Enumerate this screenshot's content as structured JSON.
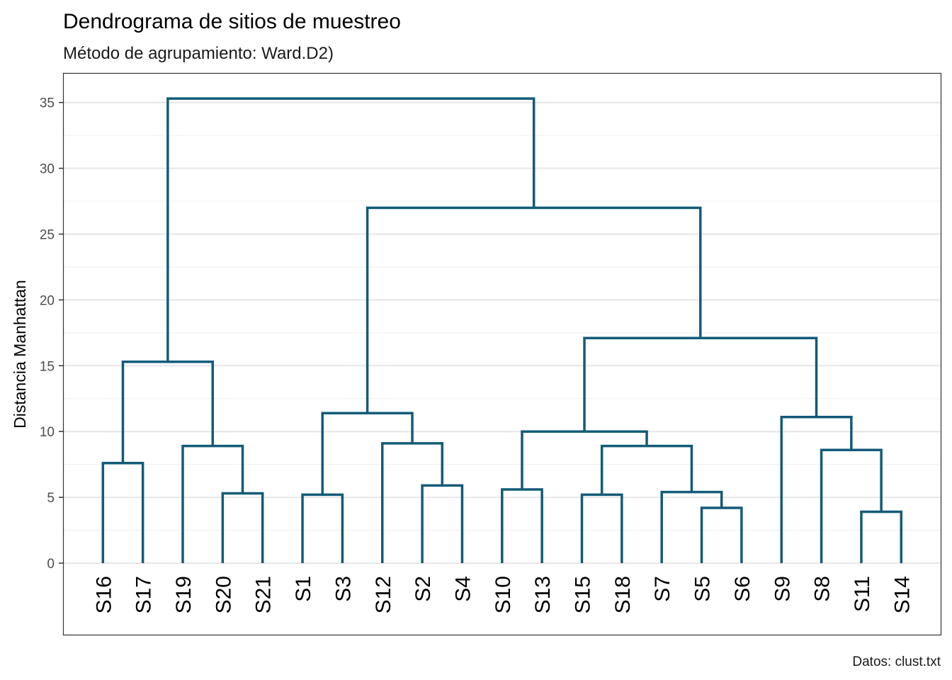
{
  "chart_data": {
    "type": "dendrogram",
    "title": "Dendrograma de sitios de muestreo",
    "subtitle": "Método de agrupamiento: Ward.D2)",
    "caption": "Datos: clust.txt",
    "ylabel": "Distancia Manhattan",
    "ylim": [
      -5.5,
      36.2
    ],
    "yticks": [
      0,
      5,
      10,
      15,
      20,
      25,
      30,
      35
    ],
    "grid": true,
    "line_color": "#135b78",
    "leaves": [
      "S16",
      "S17",
      "S19",
      "S20",
      "S21",
      "S1",
      "S3",
      "S12",
      "S2",
      "S4",
      "S10",
      "S13",
      "S15",
      "S18",
      "S7",
      "S5",
      "S6",
      "S9",
      "S8",
      "S11",
      "S14"
    ],
    "merges": [
      {
        "left": "S16",
        "right": "S17",
        "height": 7.6
      },
      {
        "left": "S20",
        "right": "S21",
        "height": 5.3
      },
      {
        "left": "S19",
        "right": "S20+S21",
        "height": 8.9
      },
      {
        "left": "S16+S17",
        "right": "S19+S20+S21",
        "height": 15.3
      },
      {
        "left": "S1",
        "right": "S3",
        "height": 5.2
      },
      {
        "left": "S2",
        "right": "S4",
        "height": 5.9
      },
      {
        "left": "S12",
        "right": "S2+S4",
        "height": 9.1
      },
      {
        "left": "S1+S3",
        "right": "S12+S2+S4",
        "height": 11.4
      },
      {
        "left": "S10",
        "right": "S13",
        "height": 5.6
      },
      {
        "left": "S15",
        "right": "S18",
        "height": 5.2
      },
      {
        "left": "S5",
        "right": "S6",
        "height": 4.2
      },
      {
        "left": "S7",
        "right": "S5+S6",
        "height": 5.4
      },
      {
        "left": "S15+S18",
        "right": "S7+S5+S6",
        "height": 8.9
      },
      {
        "left": "S10+S13",
        "right": "S15+S18+S7+S5+S6",
        "height": 10.0
      },
      {
        "left": "S11",
        "right": "S14",
        "height": 3.9
      },
      {
        "left": "S8",
        "right": "S11+S14",
        "height": 8.6
      },
      {
        "left": "S9",
        "right": "S8+S11+S14",
        "height": 11.1
      },
      {
        "left": "S10 cluster",
        "right": "S9 cluster",
        "height": 17.1
      },
      {
        "left": "S1 cluster",
        "right": "S10+S9 cluster",
        "height": 27.0
      },
      {
        "left": "S16 cluster",
        "right": "S1+S10+S9 cluster",
        "height": 35.3
      }
    ]
  }
}
